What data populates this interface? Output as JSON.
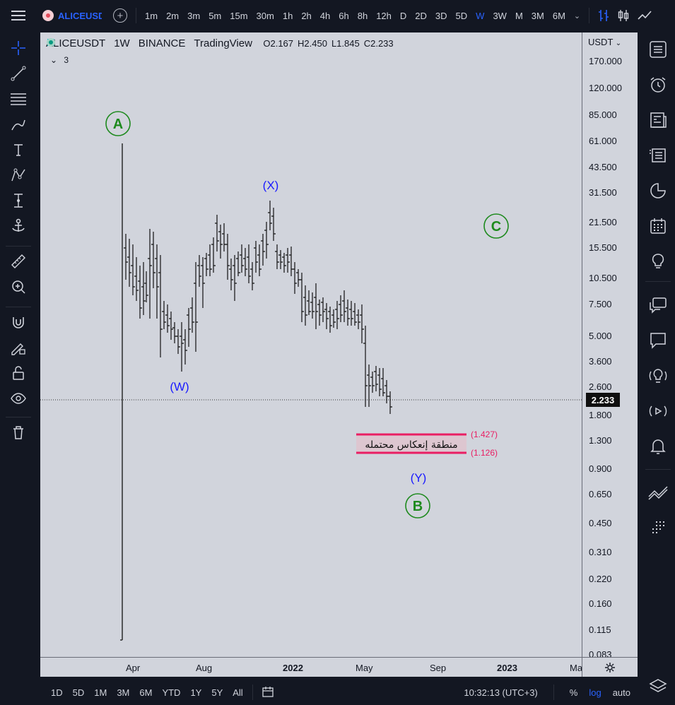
{
  "header": {
    "symbol": "ALICEUSDT",
    "timeframes": [
      "1m",
      "2m",
      "3m",
      "5m",
      "15m",
      "30m",
      "1h",
      "2h",
      "4h",
      "6h",
      "8h",
      "12h",
      "D",
      "2D",
      "3D",
      "5D",
      "W",
      "3W",
      "M",
      "3M",
      "6M"
    ],
    "active_timeframe": "W"
  },
  "legend": {
    "symbol": "ALICEUSDT",
    "interval": "1W",
    "exchange": "BINANCE",
    "source": "TradingView",
    "open": "O2.167",
    "high": "H2.450",
    "low": "L1.845",
    "close": "C2.233",
    "indicators_count": "3"
  },
  "price_scale": {
    "currency": "USDT",
    "labels": [
      "170.000",
      "120.000",
      "85.000",
      "61.000",
      "43.500",
      "31.500",
      "21.500",
      "15.500",
      "10.500",
      "7.500",
      "5.000",
      "3.600",
      "2.600",
      "1.800",
      "1.300",
      "0.900",
      "0.650",
      "0.450",
      "0.310",
      "0.220",
      "0.160",
      "0.115",
      "0.083"
    ],
    "current_price": "2.233"
  },
  "time_scale": {
    "labels": [
      "Apr",
      "Aug",
      "2022",
      "May",
      "Sep",
      "2023",
      "Ma"
    ]
  },
  "annotations": {
    "wave_a": "A",
    "wave_b": "B",
    "wave_c": "C",
    "wave_w": "(W)",
    "wave_x": "(X)",
    "wave_y": "(Y)",
    "zone_text": "منطقة إنعكاس محتمله",
    "zone_upper": "(1.427)",
    "zone_lower": "(1.126)"
  },
  "bottom_bar": {
    "ranges": [
      "1D",
      "5D",
      "1M",
      "3M",
      "6M",
      "YTD",
      "1Y",
      "5Y",
      "All"
    ],
    "time": "10:32:13 (UTC+3)",
    "percent": "%",
    "log": "log",
    "auto": "auto"
  },
  "colors": {
    "accent": "#2962ff",
    "wave_green": "#1e8a1e",
    "wave_blue": "#1a1aff",
    "zone_pink": "#e91e63",
    "chart_bg": "#d1d4dc",
    "ui_bg": "#131722"
  }
}
